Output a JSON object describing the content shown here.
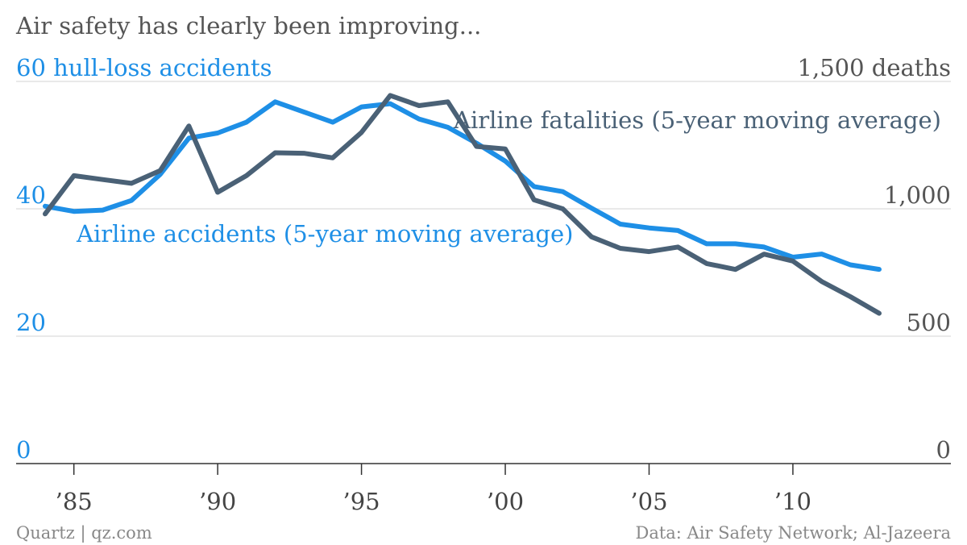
{
  "chart_data": {
    "type": "line",
    "title": "Air safety has clearly been improving...",
    "x": [
      1984,
      1985,
      1986,
      1987,
      1988,
      1989,
      1990,
      1991,
      1992,
      1993,
      1994,
      1995,
      1996,
      1997,
      1998,
      1999,
      2000,
      2001,
      2002,
      2003,
      2004,
      2005,
      2006,
      2007,
      2008,
      2009,
      2010,
      2011,
      2012,
      2013
    ],
    "x_ticks": [
      1985,
      1990,
      1995,
      2000,
      2005,
      2010
    ],
    "x_tick_labels": [
      "’85",
      "’90",
      "’95",
      "’00",
      "’05",
      "’10"
    ],
    "xlim": [
      1983,
      2015
    ],
    "left_axis": {
      "ylim": [
        0,
        60
      ],
      "ticks": [
        0,
        20,
        40,
        60
      ],
      "tick_labels": [
        "0",
        "20",
        "40",
        "60 hull-loss accidents"
      ],
      "color": "#1e8fe6"
    },
    "right_axis": {
      "ylim": [
        0,
        1500
      ],
      "ticks": [
        0,
        500,
        1000,
        1500
      ],
      "tick_labels": [
        "0",
        "500",
        "1,000",
        "1,500 deaths"
      ],
      "color": "#555555"
    },
    "series": [
      {
        "name": "Airline accidents (5-year moving average)",
        "axis": "left",
        "color": "#1e8fe6",
        "values": [
          40.4,
          39.6,
          39.8,
          41.3,
          45.4,
          51.1,
          51.9,
          53.6,
          56.8,
          55.2,
          53.6,
          56.0,
          56.5,
          54.1,
          52.8,
          50.3,
          47.5,
          43.5,
          42.7,
          40.1,
          37.6,
          37.0,
          36.6,
          34.5,
          34.5,
          34.0,
          32.4,
          32.9,
          31.2,
          30.5
        ]
      },
      {
        "name": "Airline fatalities (5-year moving average)",
        "axis": "right",
        "color": "#4a6176",
        "values": [
          980,
          1130,
          1115,
          1100,
          1150,
          1325,
          1065,
          1130,
          1220,
          1218,
          1200,
          1300,
          1445,
          1405,
          1420,
          1245,
          1235,
          1035,
          1000,
          890,
          845,
          832,
          850,
          785,
          762,
          822,
          795,
          715,
          655,
          590
        ]
      }
    ],
    "annotations": {
      "accidents_label": "Airline accidents (5-year moving average)",
      "fatalities_label": "Airline fatalities (5-year moving average)"
    },
    "grid": true,
    "legend": "inline labels"
  },
  "footer": {
    "left": "Quartz | qz.com",
    "right": "Data: Air Safety Network; Al-Jazeera"
  }
}
